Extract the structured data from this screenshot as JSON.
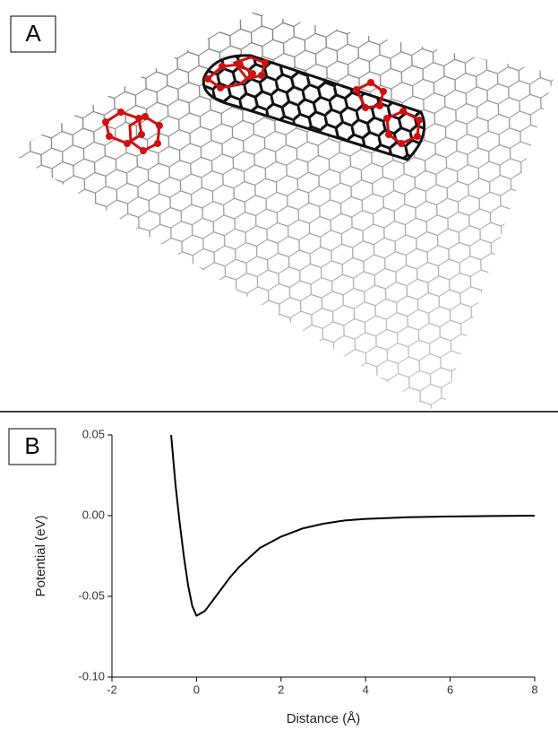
{
  "panel_labels": [
    "A",
    "B"
  ],
  "chart_data": {
    "type": "line",
    "xlabel": "Distance (Å)",
    "ylabel": "Potential (eV)",
    "x": [
      -0.6,
      -0.55,
      -0.5,
      -0.45,
      -0.4,
      -0.3,
      -0.2,
      -0.1,
      0,
      0.2,
      0.4,
      0.6,
      0.8,
      1,
      1.25,
      1.5,
      2,
      2.5,
      3,
      3.5,
      4,
      5,
      6,
      7,
      8
    ],
    "values": [
      0.05,
      0.035,
      0.02,
      0.008,
      -0.004,
      -0.025,
      -0.043,
      -0.056,
      -0.062,
      -0.059,
      -0.052,
      -0.045,
      -0.038,
      -0.032,
      -0.026,
      -0.02,
      -0.013,
      -0.008,
      -0.005,
      -0.003,
      -0.002,
      -0.001,
      -0.0005,
      -0.0002,
      0
    ],
    "color": "#000000",
    "xlim": [
      -2,
      8
    ],
    "xticks": [
      -2,
      0,
      2,
      4,
      6,
      8
    ],
    "ylim": [
      -0.1,
      0.05
    ],
    "yticks": [
      {
        "value": -0.1,
        "label": "-0.10"
      },
      -0.05,
      {
        "value": 0,
        "label": "0.00"
      },
      0.05
    ],
    "grid": false
  }
}
